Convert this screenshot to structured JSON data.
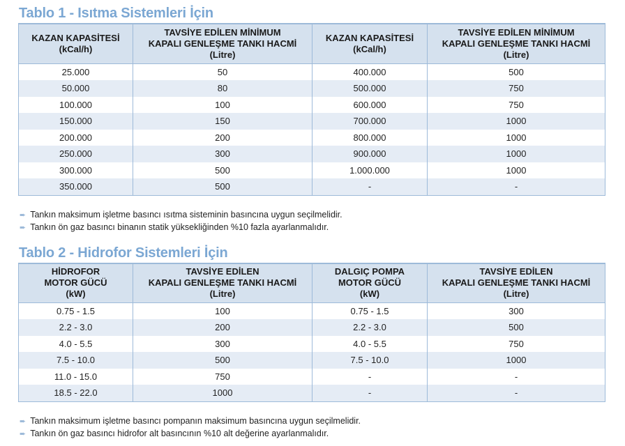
{
  "table1": {
    "title": "Tablo 1 - Isıtma Sistemleri İçin",
    "headers": [
      [
        "KAZAN KAPASİTESİ",
        "(kCal/h)"
      ],
      [
        "TAVSİYE EDİLEN MİNİMUM",
        "KAPALI GENLEŞME TANKI HACMİ",
        "(Litre)"
      ],
      [
        "KAZAN KAPASİTESİ",
        "(kCal/h)"
      ],
      [
        "TAVSİYE EDİLEN MİNİMUM",
        "KAPALI GENLEŞME TANKI HACMİ",
        "(Litre)"
      ]
    ],
    "rows": [
      [
        "25.000",
        "50",
        "400.000",
        "500"
      ],
      [
        "50.000",
        "80",
        "500.000",
        "750"
      ],
      [
        "100.000",
        "100",
        "600.000",
        "750"
      ],
      [
        "150.000",
        "150",
        "700.000",
        "1000"
      ],
      [
        "200.000",
        "200",
        "800.000",
        "1000"
      ],
      [
        "250.000",
        "300",
        "900.000",
        "1000"
      ],
      [
        "300.000",
        "500",
        "1.000.000",
        "1000"
      ],
      [
        "350.000",
        "500",
        "-",
        "-"
      ]
    ],
    "notes": [
      "Tankın maksimum işletme basıncı ısıtma sisteminin basıncına uygun seçilmelidir.",
      "Tankın ön gaz basıncı binanın statik yüksekliğinden %10 fazla ayarlanmalıdır."
    ]
  },
  "table2": {
    "title": "Tablo 2 - Hidrofor Sistemleri İçin",
    "headers": [
      [
        "HİDROFOR",
        "MOTOR GÜCÜ",
        "(kW)"
      ],
      [
        "TAVSİYE EDİLEN",
        "KAPALI GENLEŞME TANKI HACMİ",
        "(Litre)"
      ],
      [
        "DALGIÇ POMPA",
        "MOTOR GÜCÜ",
        "(kW)"
      ],
      [
        "TAVSİYE EDİLEN",
        "KAPALI GENLEŞME TANKI HACMİ",
        "(Litre)"
      ]
    ],
    "rows": [
      [
        "0.75 - 1.5",
        "100",
        "0.75 - 1.5",
        "300"
      ],
      [
        "2.2 - 3.0",
        "200",
        "2.2 - 3.0",
        "500"
      ],
      [
        "4.0 - 5.5",
        "300",
        "4.0 - 5.5",
        "750"
      ],
      [
        "7.5 - 10.0",
        "500",
        "7.5 - 10.0",
        "1000"
      ],
      [
        "11.0 - 15.0",
        "750",
        "-",
        "-"
      ],
      [
        "18.5 - 22.0",
        "1000",
        "-",
        "-"
      ]
    ],
    "notes": [
      "Tankın maksimum işletme basıncı pompanın maksimum basıncına uygun seçilmelidir.",
      "Tankın ön gaz basıncı hidrofor alt basıncının %10 alt değerine ayarlanmalıdır."
    ]
  },
  "icons": {
    "bullet": "arrow-right-icon"
  },
  "colors": {
    "title": "#7ba7d3",
    "header_bg": "#d5e1ee",
    "stripe": "#e5ecf5",
    "border": "#9dbad9"
  }
}
